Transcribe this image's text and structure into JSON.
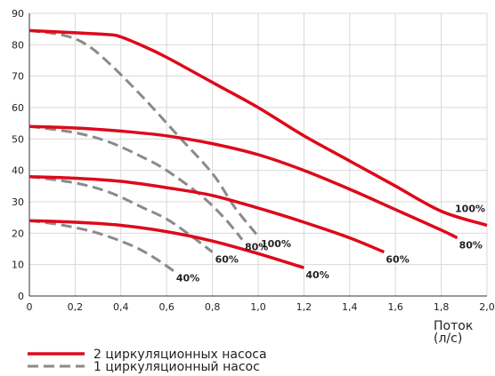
{
  "chart_data": {
    "type": "line",
    "xlim": [
      0,
      2.0
    ],
    "ylim": [
      0,
      90
    ],
    "x_ticks": [
      "0",
      "0,2",
      "0,4",
      "0,6",
      "0,8",
      "1,0",
      "1,2",
      "1,4",
      "1,6",
      "1,8",
      "2,0"
    ],
    "y_ticks": [
      "0",
      "10",
      "20",
      "30",
      "40",
      "50",
      "60",
      "70",
      "80",
      "90"
    ],
    "xlabel": "Поток\n(л/с)",
    "ylabel": "",
    "grid": true,
    "legend_position": "bottom-left",
    "colors": {
      "two_pumps": "#dd0a1b",
      "one_pump": "#8a8a8a",
      "grid": "#d8d8d8",
      "axis": "#333333"
    },
    "series": [
      {
        "name": "2 циркуляционных насоса",
        "style": "solid",
        "curves": [
          {
            "label": "100%",
            "points": [
              [
                0,
                84.5
              ],
              [
                0.2,
                83.8
              ],
              [
                0.35,
                83.2
              ],
              [
                0.4,
                82.5
              ],
              [
                0.5,
                79.5
              ],
              [
                0.6,
                76
              ],
              [
                0.8,
                68
              ],
              [
                1.0,
                60
              ],
              [
                1.2,
                51
              ],
              [
                1.4,
                43
              ],
              [
                1.6,
                35
              ],
              [
                1.8,
                27
              ],
              [
                2.0,
                22.5
              ]
            ]
          },
          {
            "label": "80%",
            "points": [
              [
                0,
                54
              ],
              [
                0.2,
                53.5
              ],
              [
                0.4,
                52.5
              ],
              [
                0.6,
                51
              ],
              [
                0.8,
                48.5
              ],
              [
                1.0,
                45
              ],
              [
                1.2,
                40
              ],
              [
                1.4,
                34
              ],
              [
                1.6,
                27.5
              ],
              [
                1.8,
                21
              ],
              [
                1.87,
                18.5
              ]
            ]
          },
          {
            "label": "60%",
            "points": [
              [
                0,
                38
              ],
              [
                0.2,
                37.5
              ],
              [
                0.4,
                36.5
              ],
              [
                0.6,
                34.5
              ],
              [
                0.8,
                32
              ],
              [
                1.0,
                28
              ],
              [
                1.2,
                23.5
              ],
              [
                1.4,
                18.5
              ],
              [
                1.55,
                14
              ]
            ]
          },
          {
            "label": "40%",
            "points": [
              [
                0,
                24
              ],
              [
                0.2,
                23.5
              ],
              [
                0.4,
                22.5
              ],
              [
                0.6,
                20.5
              ],
              [
                0.8,
                17.5
              ],
              [
                1.0,
                13.5
              ],
              [
                1.2,
                9
              ]
            ]
          }
        ]
      },
      {
        "name": "1 циркуляционный насос",
        "style": "dashed",
        "curves": [
          {
            "label": "100%",
            "points": [
              [
                0,
                84.5
              ],
              [
                0.15,
                83
              ],
              [
                0.25,
                80
              ],
              [
                0.35,
                74
              ],
              [
                0.5,
                63
              ],
              [
                0.65,
                51
              ],
              [
                0.8,
                39
              ],
              [
                0.9,
                28
              ],
              [
                1.0,
                19
              ]
            ]
          },
          {
            "label": "80%",
            "points": [
              [
                0,
                54
              ],
              [
                0.2,
                52
              ],
              [
                0.35,
                49
              ],
              [
                0.5,
                44
              ],
              [
                0.6,
                40
              ],
              [
                0.75,
                32
              ],
              [
                0.85,
                25
              ],
              [
                0.93,
                18
              ]
            ]
          },
          {
            "label": "60%",
            "points": [
              [
                0,
                38
              ],
              [
                0.2,
                36
              ],
              [
                0.35,
                33
              ],
              [
                0.5,
                28
              ],
              [
                0.6,
                24.5
              ],
              [
                0.7,
                19.5
              ],
              [
                0.8,
                14
              ]
            ]
          },
          {
            "label": "40%",
            "points": [
              [
                0,
                24
              ],
              [
                0.15,
                22.5
              ],
              [
                0.3,
                20
              ],
              [
                0.45,
                16
              ],
              [
                0.55,
                12
              ],
              [
                0.63,
                8
              ]
            ]
          }
        ]
      }
    ]
  }
}
